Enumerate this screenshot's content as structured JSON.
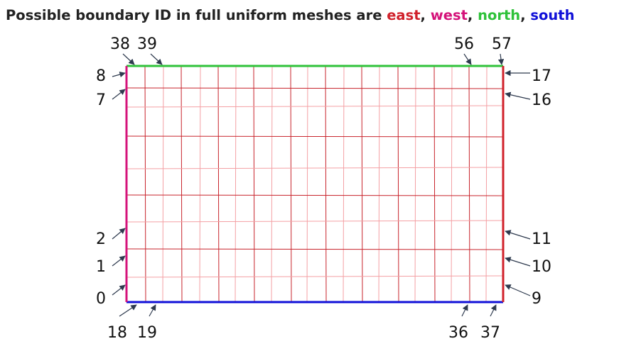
{
  "title": {
    "prefix": "Possible boundary ID in full uniform meshes are ",
    "east": "east",
    "sep1": ", ",
    "west": "west",
    "sep2": ", ",
    "north": "north",
    "sep3": ", ",
    "south": "south"
  },
  "colors": {
    "east": "#d0212b",
    "west": "#d4127a",
    "north": "#2fc23a",
    "south": "#1010d8",
    "grid_dark": "#c8242c",
    "grid_light": "#f4a0a4",
    "arrow": "#2e3a4e"
  },
  "labels": {
    "north_left_a": "38",
    "north_left_b": "39",
    "north_right_a": "56",
    "north_right_b": "57",
    "west_top_a": "8",
    "west_top_b": "7",
    "west_bottom_a": "2",
    "west_bottom_b": "1",
    "west_bottom_c": "0",
    "east_top_a": "17",
    "east_top_b": "16",
    "east_bottom_a": "11",
    "east_bottom_b": "10",
    "east_bottom_c": "9",
    "south_left_a": "18",
    "south_left_b": "19",
    "south_right_a": "36",
    "south_right_b": "37"
  }
}
